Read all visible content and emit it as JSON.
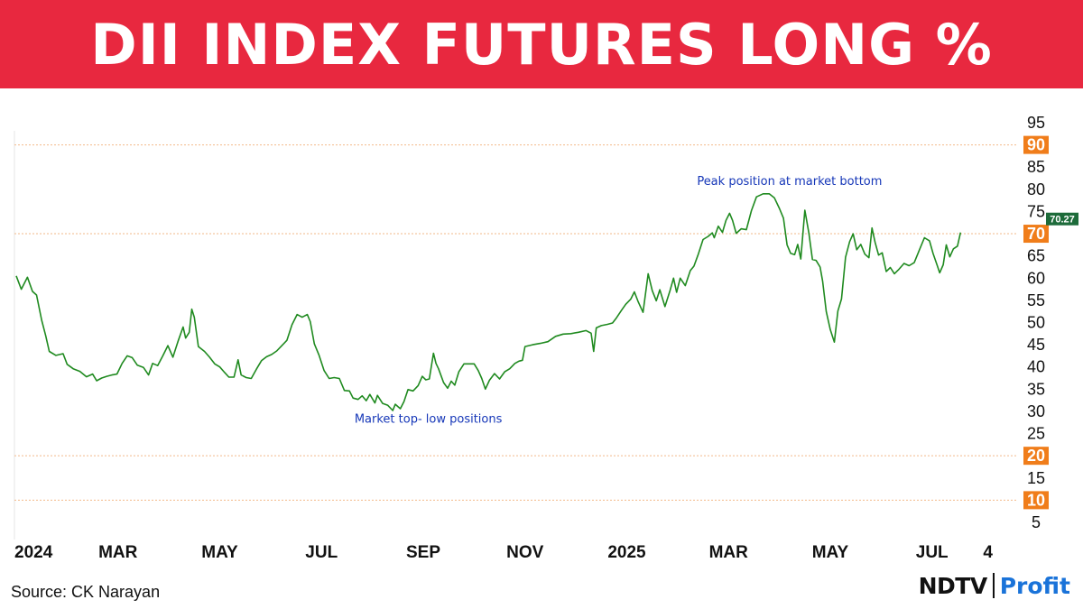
{
  "header": {
    "title": "DII INDEX FUTURES LONG %"
  },
  "footer": {
    "source": "Source: CK Narayan",
    "brand_primary": "NDTV",
    "brand_secondary": "Profit"
  },
  "colors": {
    "banner": "#e8283f",
    "line": "#1f8a1f",
    "highlight_tick": "#f07d1a",
    "ref_line": "#f2b98a",
    "last_value_badge": "#1d6b3a",
    "annotation": "#1637b8"
  },
  "chart_data": {
    "type": "line",
    "title": "DII INDEX FUTURES LONG %",
    "xlabel": "",
    "ylabel": "",
    "ylim": [
      5,
      95
    ],
    "y_ticks": [
      5,
      10,
      15,
      20,
      25,
      30,
      35,
      40,
      45,
      50,
      55,
      60,
      65,
      70,
      75,
      80,
      85,
      90,
      95
    ],
    "highlighted_y_ticks": [
      10,
      20,
      70,
      90
    ],
    "reference_lines": [
      10,
      20,
      70,
      90
    ],
    "xlim": [
      0,
      19.3
    ],
    "x_ticks": [
      {
        "x": 0,
        "label": "2024"
      },
      {
        "x": 2,
        "label": "MAR"
      },
      {
        "x": 4,
        "label": "MAY"
      },
      {
        "x": 6,
        "label": "JUL"
      },
      {
        "x": 8,
        "label": "SEP"
      },
      {
        "x": 10,
        "label": "NOV"
      },
      {
        "x": 12,
        "label": "2025"
      },
      {
        "x": 14,
        "label": "MAR"
      },
      {
        "x": 16,
        "label": "MAY"
      },
      {
        "x": 18,
        "label": "JUL"
      },
      {
        "x": 19.1,
        "label": "4"
      }
    ],
    "last_value": "70.27",
    "annotations": [
      {
        "text": "Peak position at market bottom",
        "x": 15.2,
        "y": 81
      },
      {
        "text": "Market top- low positions",
        "x": 8.1,
        "y": 27.5
      }
    ],
    "series": [
      {
        "values": [
          [
            0.0,
            60.5
          ],
          [
            0.1,
            57.5
          ],
          [
            0.22,
            60.2
          ],
          [
            0.32,
            57.0
          ],
          [
            0.4,
            56.2
          ],
          [
            0.5,
            50.5
          ],
          [
            0.58,
            47.0
          ],
          [
            0.65,
            43.5
          ],
          [
            0.78,
            42.6
          ],
          [
            0.92,
            43.0
          ],
          [
            1.0,
            40.6
          ],
          [
            1.12,
            39.6
          ],
          [
            1.25,
            39.0
          ],
          [
            1.38,
            37.8
          ],
          [
            1.5,
            38.4
          ],
          [
            1.58,
            36.9
          ],
          [
            1.68,
            37.5
          ],
          [
            1.78,
            37.9
          ],
          [
            1.88,
            38.2
          ],
          [
            1.98,
            38.4
          ],
          [
            2.08,
            40.8
          ],
          [
            2.18,
            42.5
          ],
          [
            2.28,
            42.1
          ],
          [
            2.38,
            40.4
          ],
          [
            2.5,
            39.9
          ],
          [
            2.6,
            38.2
          ],
          [
            2.68,
            40.8
          ],
          [
            2.78,
            40.3
          ],
          [
            2.88,
            42.5
          ],
          [
            2.98,
            44.8
          ],
          [
            3.08,
            42.2
          ],
          [
            3.18,
            45.8
          ],
          [
            3.28,
            49.0
          ],
          [
            3.33,
            46.5
          ],
          [
            3.4,
            47.8
          ],
          [
            3.45,
            53.0
          ],
          [
            3.5,
            51.2
          ],
          [
            3.58,
            44.6
          ],
          [
            3.7,
            43.5
          ],
          [
            3.8,
            42.2
          ],
          [
            3.9,
            40.7
          ],
          [
            4.0,
            40.0
          ],
          [
            4.1,
            38.7
          ],
          [
            4.18,
            37.7
          ],
          [
            4.28,
            37.7
          ],
          [
            4.36,
            41.6
          ],
          [
            4.42,
            38.2
          ],
          [
            4.52,
            37.6
          ],
          [
            4.62,
            37.4
          ],
          [
            4.72,
            39.5
          ],
          [
            4.82,
            41.4
          ],
          [
            4.92,
            42.3
          ],
          [
            5.02,
            42.8
          ],
          [
            5.12,
            43.6
          ],
          [
            5.22,
            44.8
          ],
          [
            5.32,
            46.0
          ],
          [
            5.42,
            49.5
          ],
          [
            5.52,
            51.8
          ],
          [
            5.62,
            51.2
          ],
          [
            5.72,
            51.8
          ],
          [
            5.78,
            50.2
          ],
          [
            5.86,
            45.2
          ],
          [
            5.95,
            42.7
          ],
          [
            6.05,
            39.2
          ],
          [
            6.15,
            37.4
          ],
          [
            6.25,
            37.6
          ],
          [
            6.35,
            37.4
          ],
          [
            6.45,
            34.7
          ],
          [
            6.55,
            34.6
          ],
          [
            6.62,
            33.0
          ],
          [
            6.72,
            32.7
          ],
          [
            6.8,
            33.5
          ],
          [
            6.88,
            32.4
          ],
          [
            6.95,
            33.8
          ],
          [
            7.05,
            31.9
          ],
          [
            7.1,
            33.6
          ],
          [
            7.2,
            31.8
          ],
          [
            7.3,
            31.4
          ],
          [
            7.4,
            30.2
          ],
          [
            7.45,
            31.6
          ],
          [
            7.55,
            30.6
          ],
          [
            7.62,
            32.2
          ],
          [
            7.7,
            34.9
          ],
          [
            7.8,
            34.6
          ],
          [
            7.9,
            35.8
          ],
          [
            7.98,
            37.9
          ],
          [
            8.05,
            37.1
          ],
          [
            8.12,
            37.3
          ],
          [
            8.2,
            43.1
          ],
          [
            8.25,
            40.8
          ],
          [
            8.3,
            39.6
          ],
          [
            8.4,
            36.5
          ],
          [
            8.48,
            35.2
          ],
          [
            8.55,
            36.8
          ],
          [
            8.62,
            35.9
          ],
          [
            8.7,
            38.9
          ],
          [
            8.8,
            40.7
          ],
          [
            8.9,
            40.7
          ],
          [
            9.0,
            40.7
          ],
          [
            9.08,
            39.2
          ],
          [
            9.15,
            37.4
          ],
          [
            9.22,
            35.0
          ],
          [
            9.3,
            37.0
          ],
          [
            9.4,
            38.5
          ],
          [
            9.5,
            37.3
          ],
          [
            9.6,
            38.9
          ],
          [
            9.7,
            39.6
          ],
          [
            9.8,
            40.8
          ],
          [
            9.88,
            41.3
          ],
          [
            9.95,
            41.5
          ],
          [
            10.0,
            44.6
          ],
          [
            10.15,
            45.0
          ],
          [
            10.3,
            45.3
          ],
          [
            10.45,
            45.7
          ],
          [
            10.6,
            46.9
          ],
          [
            10.75,
            47.4
          ],
          [
            10.9,
            47.5
          ],
          [
            11.05,
            47.8
          ],
          [
            11.2,
            48.2
          ],
          [
            11.3,
            47.6
          ],
          [
            11.35,
            43.5
          ],
          [
            11.4,
            48.8
          ],
          [
            11.5,
            49.3
          ],
          [
            11.62,
            49.6
          ],
          [
            11.72,
            49.9
          ],
          [
            11.8,
            51.1
          ],
          [
            11.9,
            52.8
          ],
          [
            11.98,
            54.1
          ],
          [
            12.08,
            55.3
          ],
          [
            12.15,
            56.9
          ],
          [
            12.22,
            54.8
          ],
          [
            12.32,
            52.3
          ],
          [
            12.42,
            61.0
          ],
          [
            12.5,
            57.2
          ],
          [
            12.58,
            54.9
          ],
          [
            12.65,
            57.4
          ],
          [
            12.75,
            53.6
          ],
          [
            12.85,
            57.2
          ],
          [
            12.92,
            60.0
          ],
          [
            12.98,
            56.8
          ],
          [
            13.05,
            60.0
          ],
          [
            13.15,
            58.3
          ],
          [
            13.25,
            61.7
          ],
          [
            13.32,
            62.7
          ],
          [
            13.4,
            65.2
          ],
          [
            13.5,
            68.7
          ],
          [
            13.6,
            69.4
          ],
          [
            13.68,
            70.2
          ],
          [
            13.72,
            69.1
          ],
          [
            13.8,
            71.7
          ],
          [
            13.88,
            70.3
          ],
          [
            13.95,
            73.0
          ],
          [
            14.02,
            74.6
          ],
          [
            14.08,
            73.0
          ],
          [
            14.15,
            70.1
          ],
          [
            14.25,
            71.1
          ],
          [
            14.35,
            70.9
          ],
          [
            14.45,
            75.2
          ],
          [
            14.55,
            78.3
          ],
          [
            14.68,
            79.0
          ],
          [
            14.8,
            79.0
          ],
          [
            14.9,
            78.1
          ],
          [
            15.0,
            75.7
          ],
          [
            15.08,
            73.5
          ],
          [
            15.15,
            67.5
          ],
          [
            15.22,
            65.6
          ],
          [
            15.3,
            65.3
          ],
          [
            15.36,
            67.6
          ],
          [
            15.42,
            64.3
          ],
          [
            15.5,
            75.3
          ],
          [
            15.58,
            70.1
          ],
          [
            15.65,
            64.2
          ],
          [
            15.72,
            64.0
          ],
          [
            15.8,
            62.5
          ],
          [
            15.85,
            59.3
          ],
          [
            15.92,
            52.5
          ],
          [
            16.0,
            48.4
          ],
          [
            16.08,
            45.6
          ],
          [
            16.15,
            52.6
          ],
          [
            16.22,
            55.3
          ],
          [
            16.3,
            64.7
          ],
          [
            16.38,
            68.2
          ],
          [
            16.45,
            70.0
          ],
          [
            16.52,
            66.4
          ],
          [
            16.6,
            67.6
          ],
          [
            16.68,
            65.4
          ],
          [
            16.76,
            64.6
          ],
          [
            16.82,
            71.3
          ],
          [
            16.88,
            68.1
          ],
          [
            16.95,
            65.2
          ],
          [
            17.02,
            65.7
          ],
          [
            17.1,
            61.5
          ],
          [
            17.18,
            62.4
          ],
          [
            17.26,
            61.0
          ],
          [
            17.35,
            62.0
          ],
          [
            17.45,
            63.3
          ],
          [
            17.55,
            62.8
          ],
          [
            17.65,
            63.5
          ],
          [
            17.75,
            66.3
          ],
          [
            17.85,
            69.1
          ],
          [
            17.95,
            68.4
          ],
          [
            18.02,
            65.6
          ],
          [
            18.1,
            62.9
          ],
          [
            18.15,
            61.2
          ],
          [
            18.22,
            63.0
          ],
          [
            18.28,
            67.5
          ],
          [
            18.35,
            64.8
          ],
          [
            18.42,
            66.6
          ],
          [
            18.5,
            67.2
          ],
          [
            18.56,
            70.27
          ]
        ]
      }
    ]
  }
}
